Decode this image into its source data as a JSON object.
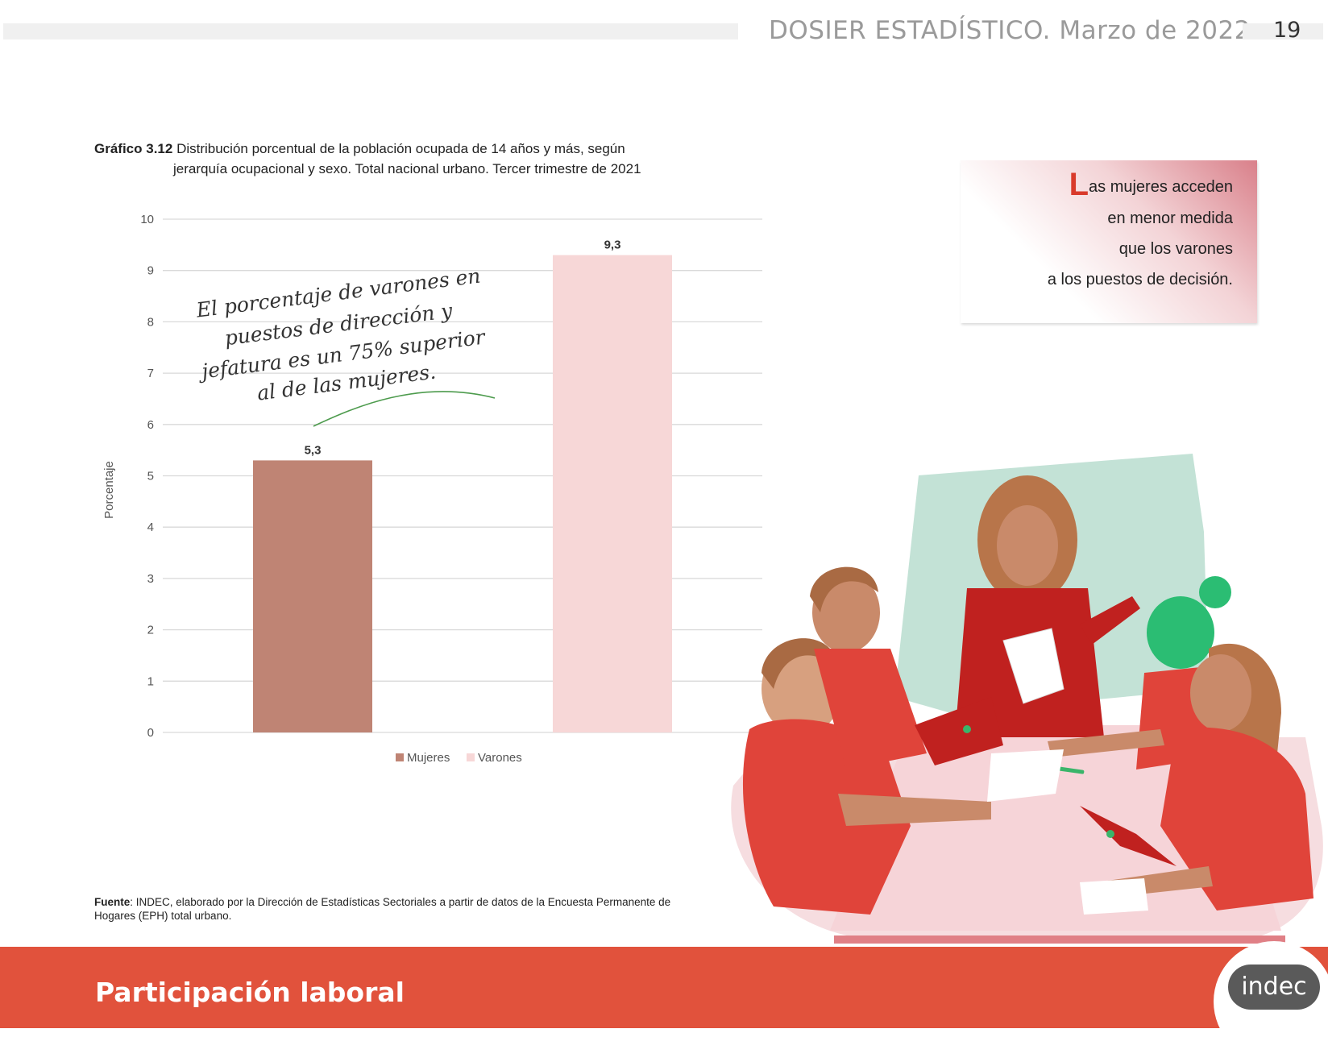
{
  "header": {
    "title": "DOSIER ESTADÍSTICO. Marzo de 2022",
    "page_number": "19"
  },
  "chart_title": {
    "label": "Gráfico 3.12",
    "line1": "Distribución porcentual de la población ocupada de 14 años y más, según",
    "line2": "jerarquía ocupacional y sexo. Total nacional urbano. Tercer trimestre de 2021"
  },
  "annotation": {
    "lines": [
      "El porcentaje de varones en",
      "puestos de dirección y",
      "jefatura es un 75% superior",
      "al de las mujeres."
    ]
  },
  "callout": {
    "dropcap": "L",
    "line1_rest": "as mujeres acceden",
    "line2": "en menor medida",
    "line3": "que los varones",
    "line4": "a los puestos de decisión."
  },
  "source": {
    "label": "Fuente",
    "text": ": INDEC, elaborado por la Dirección de Estadísticas Sectoriales a partir de datos de la Encuesta Permanente de Hogares (EPH) total urbano."
  },
  "footer": {
    "section_title": "Participación laboral",
    "logo_text": "indec"
  },
  "chart_data": {
    "type": "bar",
    "categories": [
      "Mujeres",
      "Varones"
    ],
    "values": [
      5.3,
      9.3
    ],
    "data_labels": [
      "5,3",
      "9,3"
    ],
    "colors": [
      "#bf8474",
      "#f7d7d7"
    ],
    "ylabel": "Porcentaje",
    "ylim": [
      0,
      10
    ],
    "yticks": [
      "0",
      "1",
      "2",
      "3",
      "4",
      "5",
      "6",
      "7",
      "8",
      "9",
      "10"
    ],
    "grid": true,
    "legend": [
      "Mujeres",
      "Varones"
    ],
    "legend_position": "bottom"
  }
}
